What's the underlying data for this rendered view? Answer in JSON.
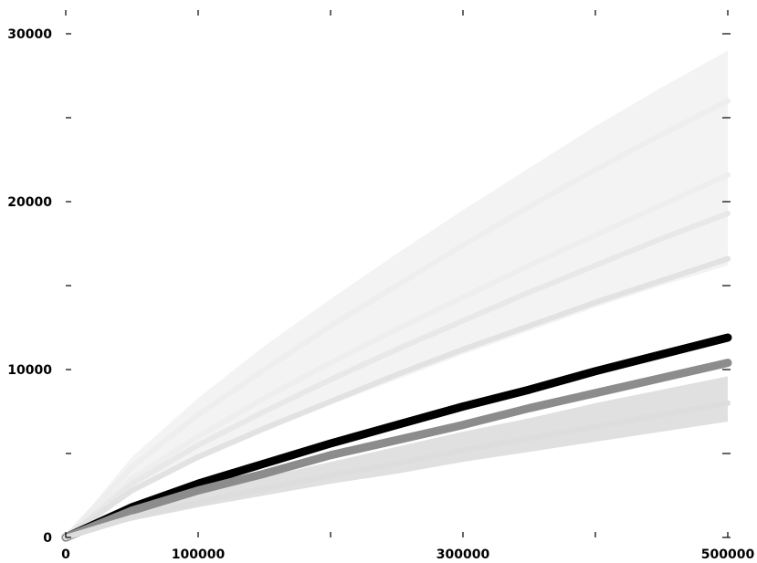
{
  "chart_data": {
    "type": "scatter",
    "title": "",
    "xlabel": "",
    "ylabel": "",
    "xlim": [
      0,
      500000
    ],
    "ylim": [
      0,
      30000
    ],
    "grid": false,
    "legend": "none",
    "x_ticks": [
      0,
      100000,
      300000,
      500000
    ],
    "x_tick_labels": [
      "0",
      "100000",
      "300000",
      "500000"
    ],
    "x_minor_ticks": [
      200000,
      400000
    ],
    "y_ticks": [
      0,
      10000,
      20000,
      30000
    ],
    "y_tick_labels": [
      "0",
      "10000",
      "20000",
      "30000"
    ],
    "y_minor_ticks": [
      5000,
      15000,
      25000
    ],
    "x": [
      0,
      50000,
      100000,
      150000,
      200000,
      250000,
      300000,
      350000,
      400000,
      450000,
      500000
    ],
    "series": [
      {
        "color": "#eeeeee",
        "values": [
          0,
          4200,
          7300,
          10000,
          12600,
          15000,
          17400,
          19700,
          21900,
          24000,
          26000
        ]
      },
      {
        "color": "#eeeeee",
        "values": [
          0,
          3500,
          6000,
          8300,
          10400,
          12400,
          14300,
          16200,
          18000,
          19800,
          21600
        ]
      },
      {
        "color": "#e8e8e8",
        "values": [
          0,
          3200,
          5500,
          7500,
          9400,
          11200,
          12900,
          14600,
          16200,
          17800,
          19300
        ]
      },
      {
        "color": "#e2e2e2",
        "values": [
          0,
          2800,
          4800,
          6500,
          8100,
          9700,
          11200,
          12600,
          14000,
          15300,
          16600
        ]
      },
      {
        "color": "#000000",
        "values": [
          0,
          1800,
          3200,
          4400,
          5600,
          6700,
          7800,
          8800,
          9900,
          10900,
          11900
        ]
      },
      {
        "color": "#8c8c8c",
        "values": [
          0,
          1600,
          2800,
          3800,
          4900,
          5800,
          6700,
          7700,
          8600,
          9500,
          10400
        ]
      },
      {
        "color": "#dddddd",
        "values": [
          0,
          1200,
          2100,
          2900,
          3700,
          4400,
          5200,
          5900,
          6600,
          7300,
          8000
        ]
      }
    ],
    "bands": [
      {
        "color": "#f3f3f3",
        "lower": [
          0,
          2600,
          4600,
          6300,
          7900,
          9400,
          10900,
          12300,
          13700,
          15000,
          16200
        ],
        "upper": [
          0,
          4800,
          8300,
          11400,
          14200,
          16900,
          19500,
          22000,
          24500,
          26800,
          29000
        ]
      },
      {
        "color": "#e0e0e0",
        "lower": [
          0,
          1000,
          1800,
          2500,
          3200,
          3800,
          4500,
          5100,
          5700,
          6300,
          6900
        ],
        "upper": [
          0,
          1500,
          2600,
          3600,
          4500,
          5400,
          6300,
          7100,
          8000,
          8800,
          9600
        ]
      }
    ]
  }
}
